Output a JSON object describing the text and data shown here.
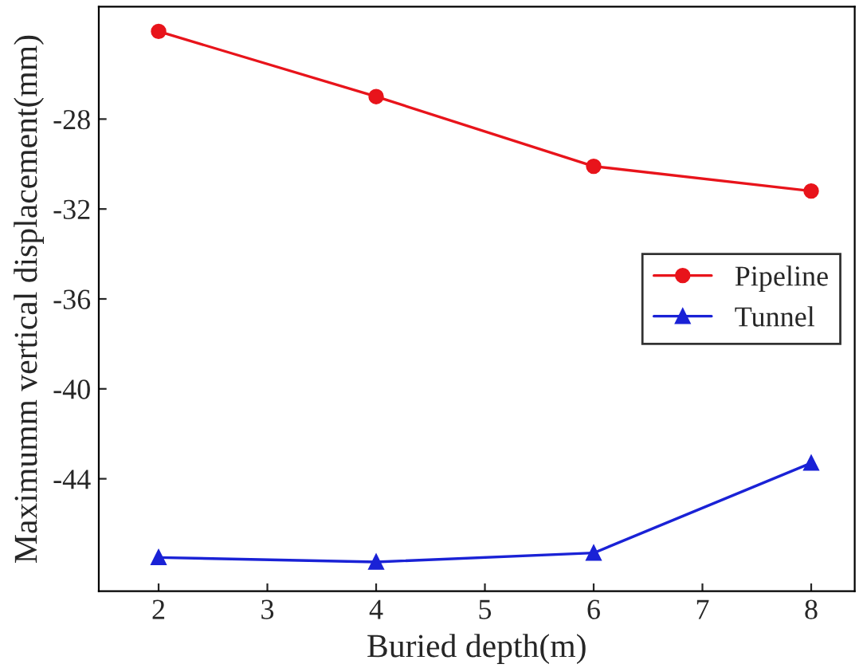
{
  "chart_data": {
    "type": "line",
    "xlabel": "Buried depth(m)",
    "ylabel": "Maximumm vertical displacement(mm)",
    "x": [
      2,
      4,
      6,
      8
    ],
    "series": [
      {
        "name": "Pipeline",
        "color": "#e8141b",
        "marker": "circle",
        "values": [
          -24.1,
          -27.0,
          -30.1,
          -31.2
        ]
      },
      {
        "name": "Tunnel",
        "color": "#1a22d6",
        "marker": "triangle",
        "values": [
          -47.5,
          -47.7,
          -47.3,
          -43.3
        ]
      }
    ],
    "xlim": [
      1.45,
      8.4
    ],
    "xticks": [
      2,
      3,
      4,
      5,
      6,
      7,
      8
    ],
    "ylim": [
      -49,
      -23
    ],
    "yticks": [
      -28,
      -32,
      -36,
      -40,
      -44
    ],
    "grid": false,
    "legend": "right",
    "line_style": "solid"
  }
}
